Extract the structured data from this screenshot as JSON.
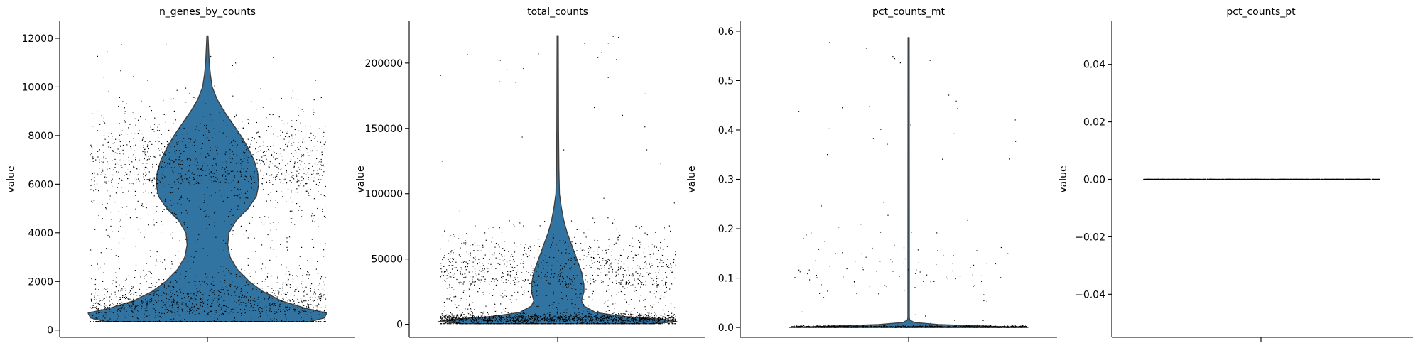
{
  "chart_data": [
    {
      "type": "violin",
      "title": "n_genes_by_counts",
      "ylabel": "value",
      "xlabel": "",
      "ylim": [
        -300,
        12700
      ],
      "yticks": [
        0,
        2000,
        4000,
        6000,
        8000,
        10000,
        12000
      ],
      "ytick_labels": [
        "0",
        "2000",
        "4000",
        "6000",
        "8000",
        "10000",
        "12000"
      ],
      "distribution": {
        "min": 350,
        "max": 12100,
        "density": [
          [
            350,
            0.86
          ],
          [
            500,
            0.98
          ],
          [
            700,
            1.0
          ],
          [
            900,
            0.82
          ],
          [
            1200,
            0.62
          ],
          [
            1600,
            0.46
          ],
          [
            2000,
            0.35
          ],
          [
            2500,
            0.25
          ],
          [
            3000,
            0.19
          ],
          [
            3500,
            0.17
          ],
          [
            4000,
            0.18
          ],
          [
            4500,
            0.24
          ],
          [
            5000,
            0.34
          ],
          [
            5500,
            0.41
          ],
          [
            6000,
            0.43
          ],
          [
            6500,
            0.42
          ],
          [
            7000,
            0.39
          ],
          [
            7500,
            0.34
          ],
          [
            8000,
            0.28
          ],
          [
            8500,
            0.21
          ],
          [
            9000,
            0.14
          ],
          [
            9500,
            0.08
          ],
          [
            10000,
            0.04
          ],
          [
            10500,
            0.025
          ],
          [
            11000,
            0.015
          ],
          [
            12100,
            0.005
          ]
        ]
      },
      "scatter": {
        "n": 2600,
        "min": 350,
        "max": 12000,
        "modes": [
          [
            700,
            900,
            0.5
          ],
          [
            6000,
            1500,
            0.5
          ]
        ]
      }
    },
    {
      "type": "violin",
      "title": "total_counts",
      "ylabel": "value",
      "xlabel": "",
      "ylim": [
        -10000,
        232000
      ],
      "yticks": [
        0,
        50000,
        100000,
        150000,
        200000
      ],
      "ytick_labels": [
        "0",
        "50000",
        "100000",
        "150000",
        "200000"
      ],
      "distribution": {
        "min": 500,
        "max": 221000,
        "density": [
          [
            500,
            0.8
          ],
          [
            2000,
            1.0
          ],
          [
            4000,
            0.86
          ],
          [
            6000,
            0.55
          ],
          [
            9000,
            0.32
          ],
          [
            14000,
            0.22
          ],
          [
            18000,
            0.2
          ],
          [
            25000,
            0.22
          ],
          [
            30000,
            0.22
          ],
          [
            40000,
            0.2
          ],
          [
            50000,
            0.16
          ],
          [
            60000,
            0.12
          ],
          [
            70000,
            0.08
          ],
          [
            80000,
            0.05
          ],
          [
            90000,
            0.03
          ],
          [
            100000,
            0.015
          ],
          [
            120000,
            0.01
          ],
          [
            150000,
            0.007
          ],
          [
            221000,
            0.005
          ]
        ]
      },
      "scatter": {
        "n": 2600,
        "min": 500,
        "max": 221000,
        "modes": [
          [
            2500,
            3000,
            0.6
          ],
          [
            30000,
            20000,
            0.4
          ]
        ]
      }
    },
    {
      "type": "violin",
      "title": "pct_counts_mt",
      "ylabel": "value",
      "xlabel": "",
      "ylim": [
        -0.02,
        0.62
      ],
      "yticks": [
        0.0,
        0.1,
        0.2,
        0.3,
        0.4,
        0.5,
        0.6
      ],
      "ytick_labels": [
        "0.0",
        "0.1",
        "0.2",
        "0.3",
        "0.4",
        "0.5",
        "0.6"
      ],
      "distribution": {
        "min": 0.0,
        "max": 0.587,
        "density": [
          [
            0.0,
            1.0
          ],
          [
            0.003,
            0.6
          ],
          [
            0.006,
            0.25
          ],
          [
            0.01,
            0.05
          ],
          [
            0.015,
            0.01
          ],
          [
            0.02,
            0.006
          ],
          [
            0.1,
            0.006
          ],
          [
            0.587,
            0.005
          ]
        ]
      },
      "scatter": {
        "n": 1500,
        "min": 0.0,
        "max": 0.587,
        "modes": [
          [
            0.0,
            0.0015,
            0.92
          ],
          [
            0.08,
            0.06,
            0.08
          ]
        ]
      }
    },
    {
      "type": "violin",
      "title": "pct_counts_pt",
      "ylabel": "value",
      "xlabel": "",
      "ylim": [
        -0.055,
        0.055
      ],
      "yticks": [
        -0.04,
        -0.02,
        0.0,
        0.02,
        0.04
      ],
      "ytick_labels": [
        "−0.04",
        "−0.02",
        "0.00",
        "0.02",
        "0.04"
      ],
      "distribution": {
        "min": 0.0,
        "max": 0.0,
        "density": []
      },
      "scatter": {
        "n": 1200,
        "min": 0.0,
        "max": 0.0,
        "modes": [
          [
            0.0,
            0.0,
            1.0
          ]
        ]
      }
    }
  ],
  "colors": {
    "violin_fill": "#3274a1",
    "violin_edge": "#3f3f3f",
    "points": "#000000",
    "axis": "#000000"
  }
}
